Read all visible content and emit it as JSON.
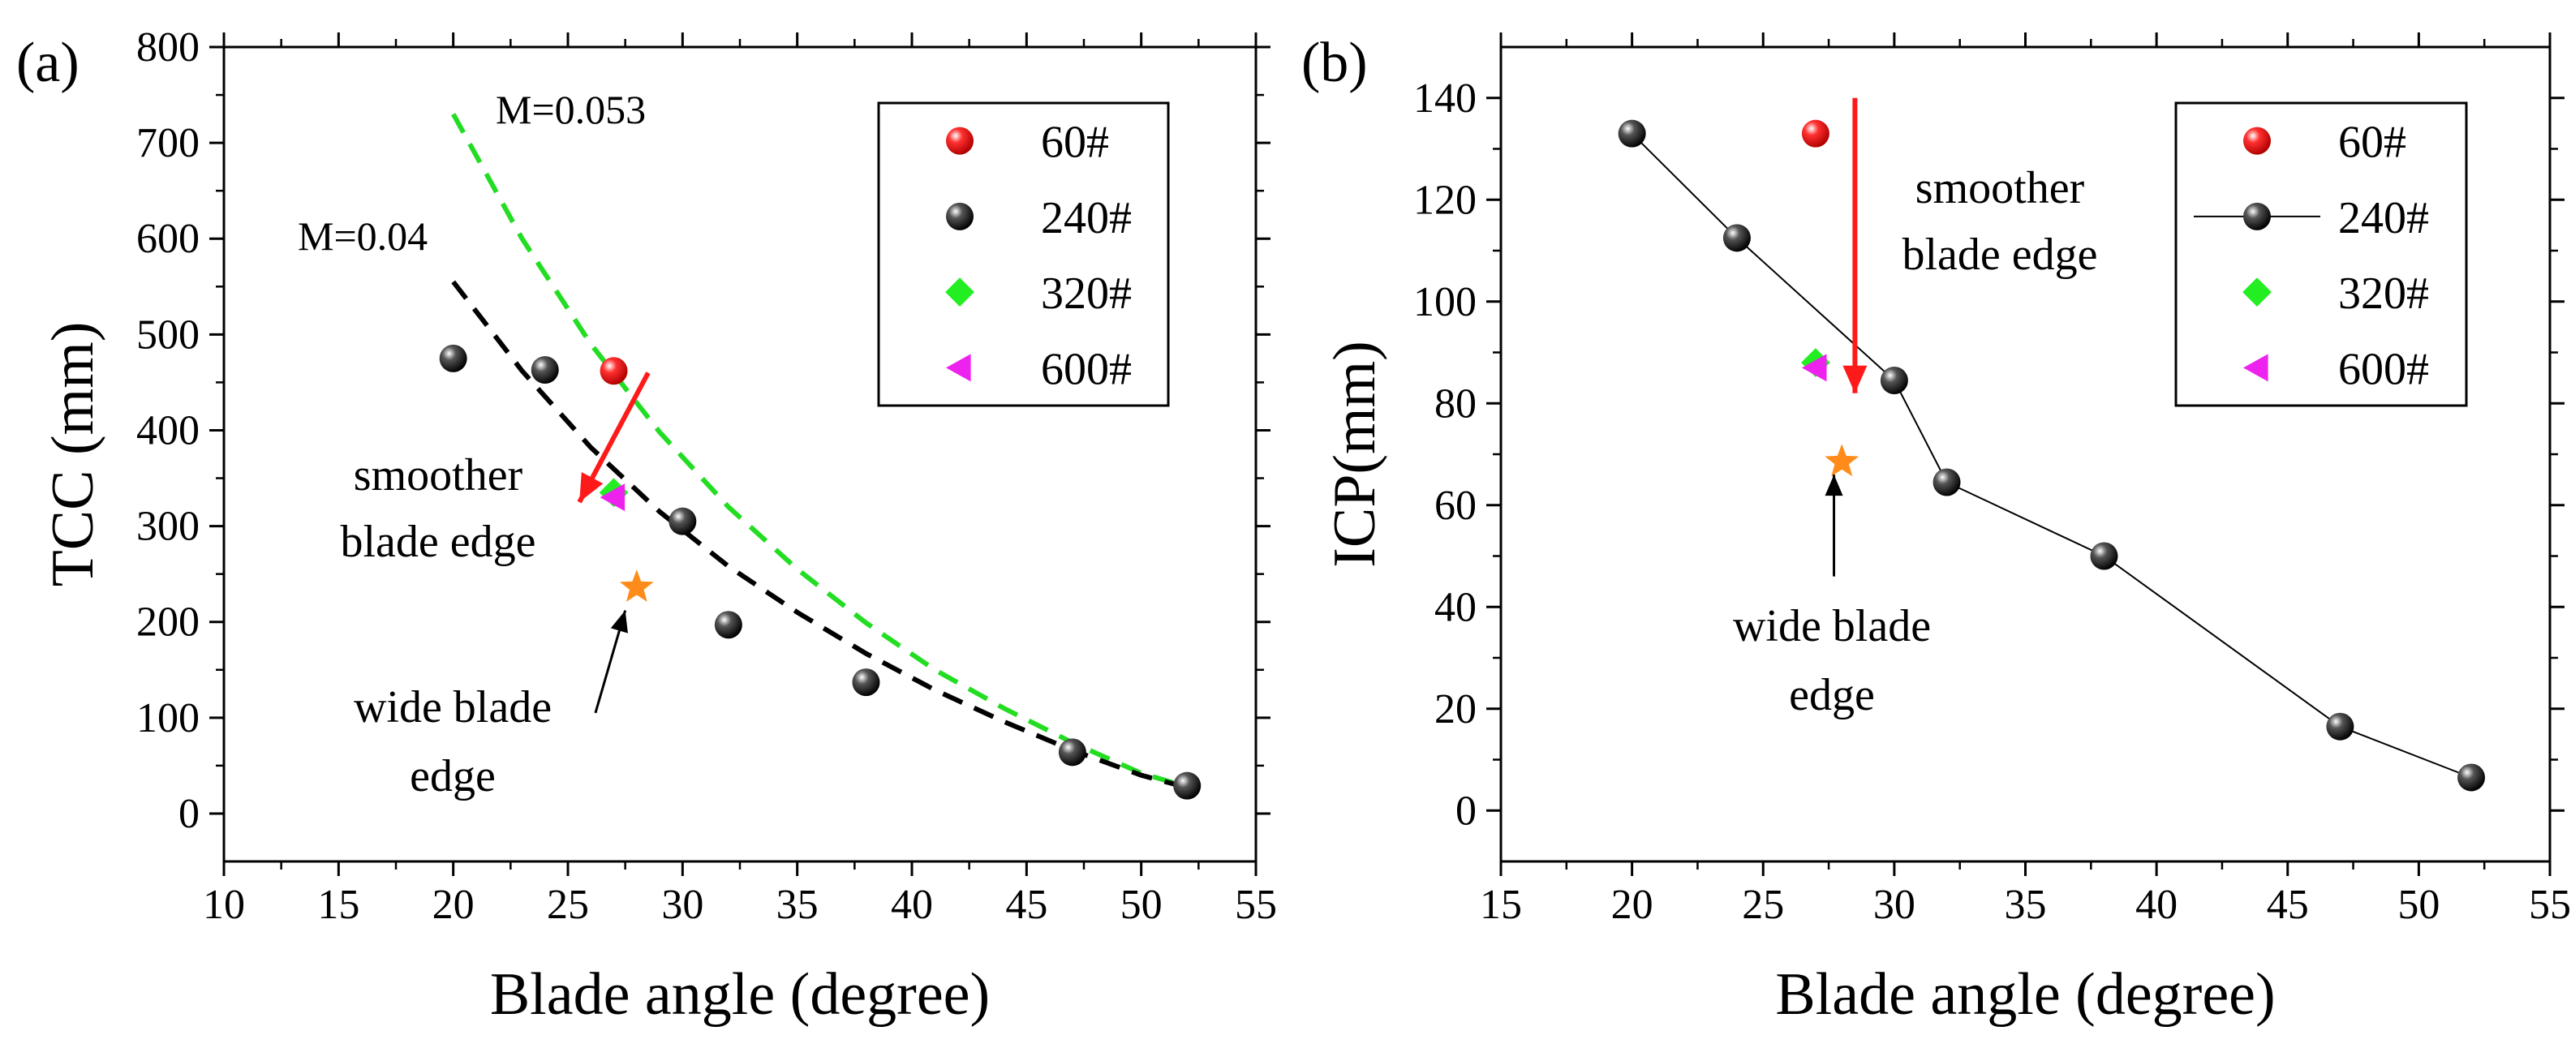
{
  "chart_data": [
    {
      "panel_label": "(a)",
      "type": "scatter",
      "xlabel": "Blade angle (degree)",
      "ylabel": "TCC (mm)",
      "xlim": [
        10,
        55
      ],
      "ylim": [
        -50,
        800
      ],
      "xticks": [
        10,
        15,
        20,
        25,
        30,
        35,
        40,
        45,
        50,
        55
      ],
      "yticks": [
        0,
        100,
        200,
        300,
        400,
        500,
        600,
        700,
        800
      ],
      "legend_position": "top-right",
      "series": [
        {
          "name": "60#",
          "marker": "sphere",
          "color": "#e02020",
          "x": [
            27
          ],
          "y": [
            462
          ]
        },
        {
          "name": "240#",
          "marker": "sphere",
          "color": "#111111",
          "x": [
            20,
            24,
            30,
            32,
            38,
            47,
            52
          ],
          "y": [
            475,
            463,
            305,
            197,
            137,
            64,
            29
          ]
        },
        {
          "name": "320#",
          "marker": "diamond",
          "color": "#22ee22",
          "x": [
            27
          ],
          "y": [
            335
          ]
        },
        {
          "name": "600#",
          "marker": "triangle-left",
          "color": "#ee22ee",
          "x": [
            27
          ],
          "y": [
            330
          ]
        },
        {
          "marker": "star",
          "color": "#ff8c1a",
          "x": [
            28
          ],
          "y": [
            236
          ]
        }
      ],
      "fit_curves": [
        {
          "label": "M=0.053",
          "color": "#22dd22",
          "x": [
            20,
            23,
            26,
            29,
            32,
            35,
            38,
            41,
            44,
            47,
            50,
            52
          ],
          "y": [
            730,
            600,
            490,
            398,
            320,
            255,
            199,
            150,
            110,
            74,
            42,
            28
          ]
        },
        {
          "label": "M=0.04",
          "color": "#000000",
          "x": [
            20,
            23,
            26,
            29,
            32,
            35,
            38,
            41,
            44,
            47,
            50,
            52
          ],
          "y": [
            555,
            462,
            382,
            315,
            258,
            210,
            167,
            129,
            96,
            66,
            40,
            27
          ]
        }
      ],
      "annotations": [
        {
          "text": [
            "smoother",
            "blade edge"
          ],
          "arrow_color": "#ff1a1a",
          "arrow_from": [
            28.5,
            460
          ],
          "arrow_to": [
            25.5,
            325
          ]
        },
        {
          "text": [
            "wide blade",
            "edge"
          ],
          "arrow_color": "#000000",
          "arrow_from": [
            26.2,
            105
          ],
          "arrow_to": [
            27.5,
            212
          ]
        }
      ]
    },
    {
      "panel_label": "(b)",
      "type": "scatter",
      "xlabel": "Blade angle (degree)",
      "ylabel": "ICP(mm)",
      "xlim": [
        15,
        55
      ],
      "ylim": [
        -10,
        150
      ],
      "xticks": [
        15,
        20,
        25,
        30,
        35,
        40,
        45,
        50,
        55
      ],
      "yticks": [
        0,
        20,
        40,
        60,
        80,
        100,
        120,
        140
      ],
      "legend_position": "top-right",
      "series": [
        {
          "name": "60#",
          "marker": "sphere",
          "color": "#e02020",
          "x": [
            27
          ],
          "y": [
            133
          ]
        },
        {
          "name": "240#",
          "marker": "sphere",
          "color": "#111111",
          "line": true,
          "x": [
            20,
            24,
            30,
            32,
            38,
            47,
            52
          ],
          "y": [
            133,
            112.5,
            84.5,
            64.5,
            50,
            16.5,
            6.5
          ]
        },
        {
          "name": "320#",
          "marker": "diamond",
          "color": "#22ee22",
          "x": [
            27
          ],
          "y": [
            88
          ]
        },
        {
          "name": "600#",
          "marker": "triangle-left",
          "color": "#ee22ee",
          "x": [
            27
          ],
          "y": [
            87
          ]
        },
        {
          "marker": "star",
          "color": "#ff8c1a",
          "x": [
            28
          ],
          "y": [
            68.5
          ]
        }
      ],
      "annotations": [
        {
          "text": [
            "smoother",
            "blade edge"
          ],
          "arrow_color": "#ff1a1a",
          "arrow_from": [
            28.5,
            140
          ],
          "arrow_to": [
            28.5,
            82
          ]
        },
        {
          "text": [
            "wide blade",
            "edge"
          ],
          "arrow_color": "#000000",
          "arrow_from": [
            27.7,
            46
          ],
          "arrow_to": [
            27.7,
            66
          ]
        }
      ]
    }
  ]
}
